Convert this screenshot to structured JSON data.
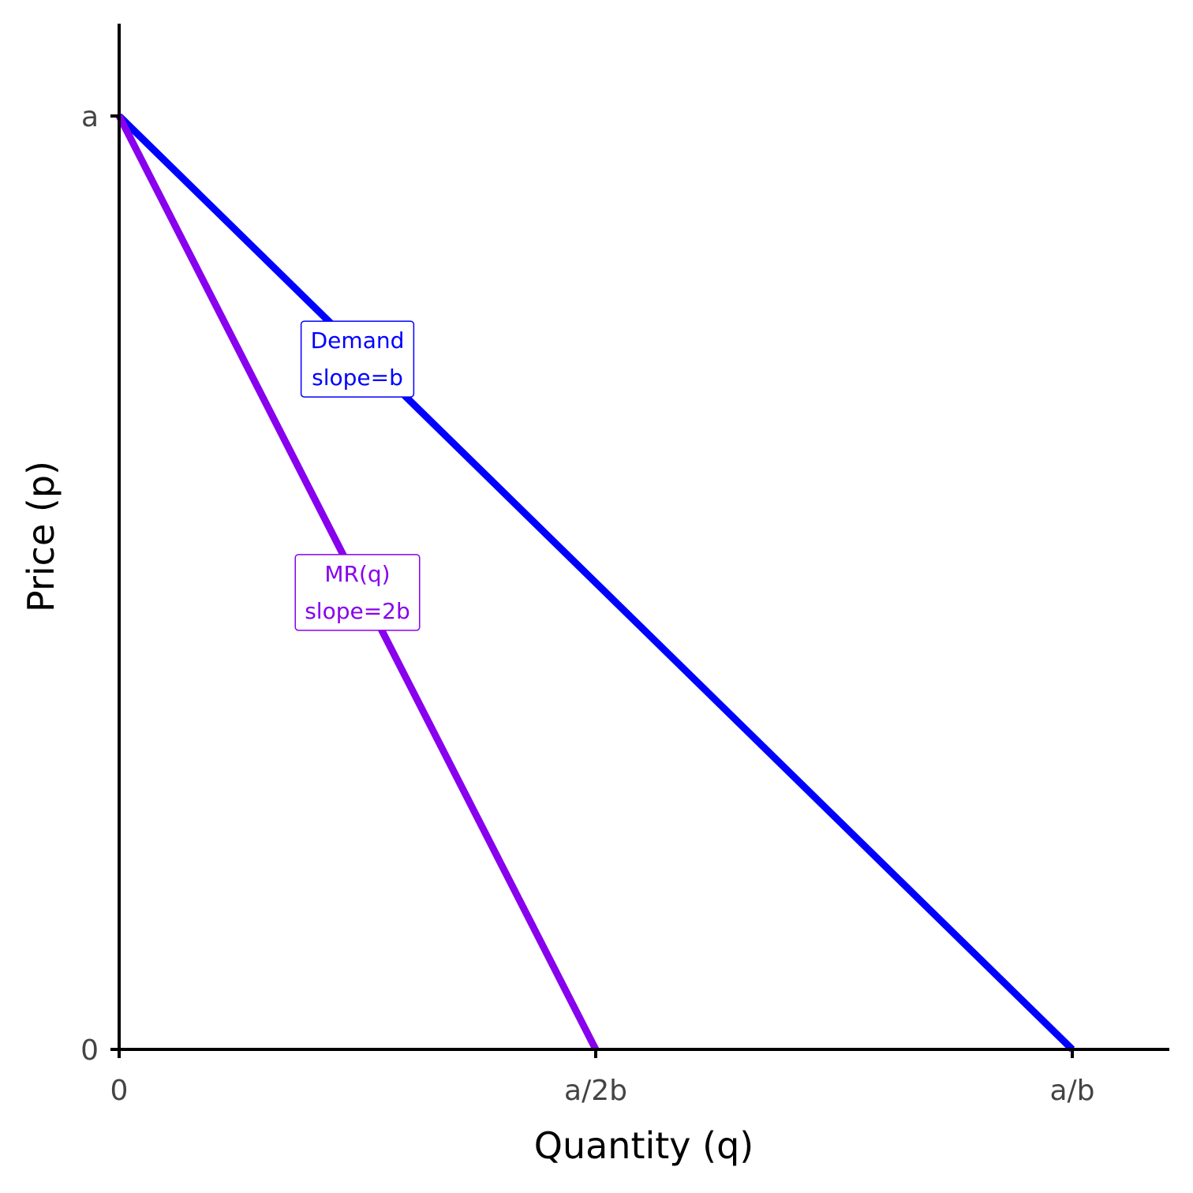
{
  "chart_data": {
    "type": "line",
    "xlabel": "Quantity (q)",
    "ylabel": "Price (p)",
    "x_ticks": [
      {
        "value": 0,
        "label": "0"
      },
      {
        "value": 0.5,
        "label": "a/2b"
      },
      {
        "value": 1,
        "label": "a/b"
      }
    ],
    "y_ticks": [
      {
        "value": 0,
        "label": "0"
      },
      {
        "value": 1,
        "label": "a"
      }
    ],
    "xlim": [
      0,
      1.1
    ],
    "ylim": [
      0,
      1.1
    ],
    "grid": false,
    "series": [
      {
        "label_lines": [
          "Demand",
          "slope=b"
        ],
        "color": "#0000ff",
        "points": [
          [
            0,
            1
          ],
          [
            1,
            0
          ]
        ]
      },
      {
        "label_lines": [
          "MR(q)",
          "slope=2b"
        ],
        "color": "#8800ee",
        "points": [
          [
            0,
            1
          ],
          [
            0.5,
            0
          ]
        ]
      }
    ],
    "annotations": [
      {
        "series_index": 0,
        "x": 0.25,
        "y": 0.74,
        "lines": [
          "Demand",
          "slope=b"
        ],
        "color": "#0000ff"
      },
      {
        "series_index": 1,
        "x": 0.25,
        "y": 0.49,
        "lines": [
          "MR(q)",
          "slope=2b"
        ],
        "color": "#8800ee"
      }
    ]
  }
}
